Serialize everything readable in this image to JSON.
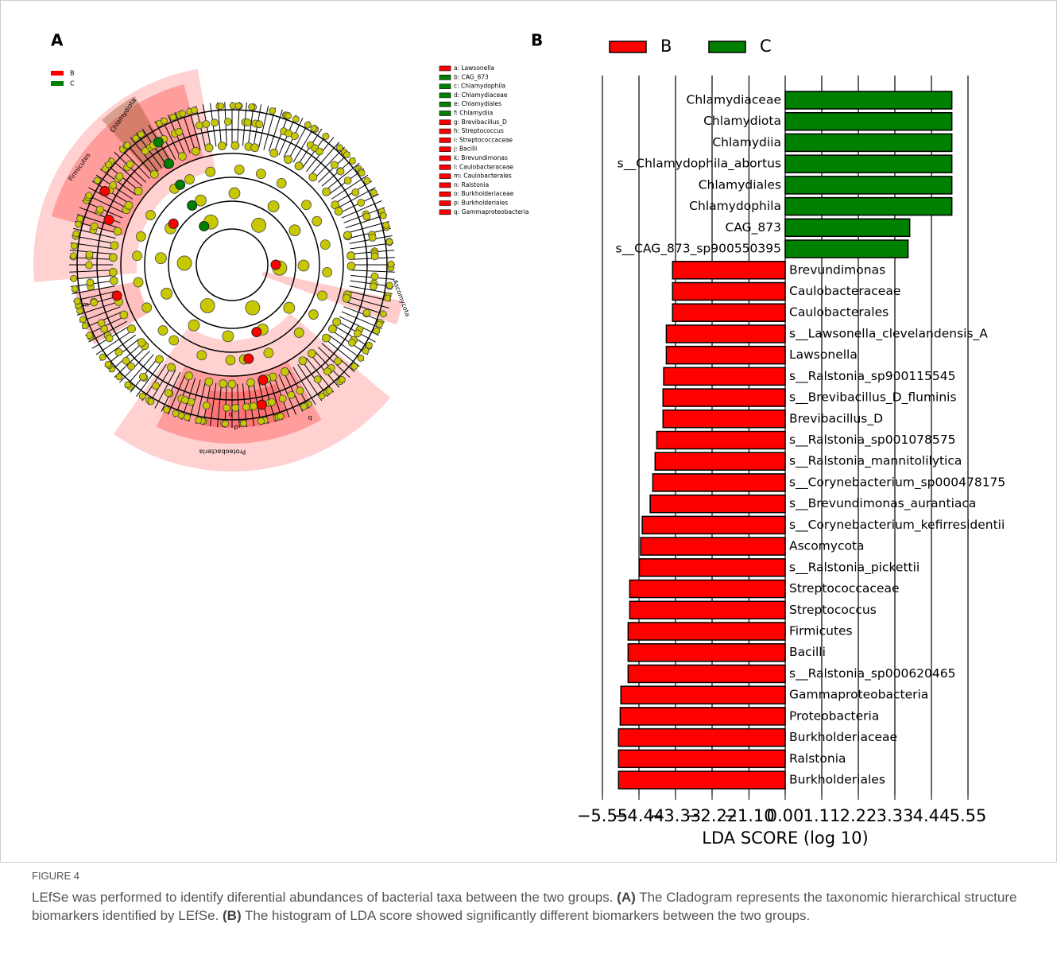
{
  "panel_a": {
    "label": "A",
    "legend": [
      {
        "name": "B",
        "color": "#ff0000"
      },
      {
        "name": "C",
        "color": "#008000"
      }
    ],
    "key": [
      {
        "label": "a: Lawsonella",
        "color": "#ff0000"
      },
      {
        "label": "b: CAG_873",
        "color": "#008000"
      },
      {
        "label": "c: Chlamydophila",
        "color": "#008000"
      },
      {
        "label": "d: Chlamydiaceae",
        "color": "#008000"
      },
      {
        "label": "e: Chlamydiales",
        "color": "#008000"
      },
      {
        "label": "f: Chlamydiia",
        "color": "#008000"
      },
      {
        "label": "g: Brevibacillus_D",
        "color": "#ff0000"
      },
      {
        "label": "h: Streptococcus",
        "color": "#ff0000"
      },
      {
        "label": "i: Streptococcaceae",
        "color": "#ff0000"
      },
      {
        "label": "j: Bacilli",
        "color": "#ff0000"
      },
      {
        "label": "k: Brevundimonas",
        "color": "#ff0000"
      },
      {
        "label": "l: Caulobacteraceae",
        "color": "#ff0000"
      },
      {
        "label": "m: Caulobacterales",
        "color": "#ff0000"
      },
      {
        "label": "n: Ralstonia",
        "color": "#ff0000"
      },
      {
        "label": "o: Burkholderiaceae",
        "color": "#ff0000"
      },
      {
        "label": "p: Burkholderiales",
        "color": "#ff0000"
      },
      {
        "label": "q: Gammaproteobacteria",
        "color": "#ff0000"
      }
    ],
    "clade_labels": [
      "Chlamydiota",
      "Firmicutes",
      "Ascomycota",
      "Proteobacteria",
      "m",
      "o",
      "p",
      "q"
    ]
  },
  "chart_data": {
    "type": "bar",
    "orientation": "horizontal",
    "panel_label": "B",
    "xlabel": "LDA SCORE (log 10)",
    "categories": [
      "Chlamydiaceae",
      "Chlamydiota",
      "Chlamydiia",
      "s__Chlamydophila_abortus",
      "Chlamydiales",
      "Chlamydophila",
      "CAG_873",
      "s__CAG_873_sp900550395",
      "Brevundimonas",
      "Caulobacteraceae",
      "Caulobacterales",
      "s__Lawsonella_clevelandensis_A",
      "Lawsonella",
      "s__Ralstonia_sp900115545",
      "s__Brevibacillus_D_fluminis",
      "Brevibacillus_D",
      "s__Ralstonia_sp001078575",
      "s__Ralstonia_mannitolilytica",
      "s__Corynebacterium_sp000478175",
      "s__Brevundimonas_aurantiaca",
      "s__Corynebacterium_kefirresidentii",
      "Ascomycota",
      "s__Ralstonia_pickettii",
      "Streptococcaceae",
      "Streptococcus",
      "Firmicutes",
      "Bacilli",
      "s__Ralstonia_sp000620465",
      "Gammaproteobacteria",
      "Proteobacteria",
      "Burkholderiaceae",
      "Ralstonia",
      "Burkholderiales"
    ],
    "series": [
      {
        "name": "B",
        "color": "#ff0000",
        "values": [
          null,
          null,
          null,
          null,
          null,
          null,
          null,
          null,
          -3.42,
          -3.42,
          -3.42,
          -3.61,
          -3.61,
          -3.69,
          -3.71,
          -3.71,
          -3.9,
          -3.95,
          -4.02,
          -4.1,
          -4.34,
          -4.39,
          -4.43,
          -4.72,
          -4.72,
          -4.77,
          -4.77,
          -4.77,
          -4.99,
          -5.01,
          -5.06,
          -5.06,
          -5.06
        ]
      },
      {
        "name": "C",
        "color": "#008000",
        "values": [
          5.06,
          5.06,
          5.06,
          5.06,
          5.06,
          5.06,
          3.78,
          3.73,
          null,
          null,
          null,
          null,
          null,
          null,
          null,
          null,
          null,
          null,
          null,
          null,
          null,
          null,
          null,
          null,
          null,
          null,
          null,
          null,
          null,
          null,
          null,
          null,
          null
        ]
      }
    ],
    "xlim": [
      -5.55,
      5.55
    ],
    "xticks": [
      {
        "value": -5.55,
        "label": "−5.55"
      },
      {
        "value": -4.44,
        "label": "−4.44"
      },
      {
        "value": -3.33,
        "label": "−3.33"
      },
      {
        "value": -2.22,
        "label": "−2.22"
      },
      {
        "value": -1.1,
        "label": "−1.10"
      },
      {
        "value": 0,
        "label": "0.00"
      },
      1.11,
      2.22,
      3.33,
      4.44,
      5.55
    ],
    "grid": true
  },
  "caption": {
    "label": "FIGURE 4",
    "segments": [
      {
        "text": "LEfSe was performed to identify diferential abundances of bacterial taxa between the two groups. ",
        "bold": false
      },
      {
        "text": "(A)",
        "bold": true
      },
      {
        "text": " The Cladogram represents the taxonomic hierarchical structure biomarkers identified by LEfSe. ",
        "bold": false
      },
      {
        "text": "(B)",
        "bold": true
      },
      {
        "text": " The histogram of LDA score showed significantly different biomarkers between the two groups.",
        "bold": false
      }
    ]
  }
}
